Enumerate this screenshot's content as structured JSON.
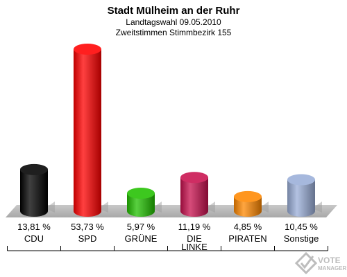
{
  "chart_data": {
    "type": "bar",
    "title": "Stadt Mülheim an der Ruhr",
    "subtitle": "Landtagswahl 09.05.2010",
    "subtitle2": "Zweitstimmen Stimmbezirk 155",
    "categories": [
      "CDU",
      "SPD",
      "GRÜNE",
      "DIE LINKE",
      "PIRATEN",
      "Sonstige"
    ],
    "category_lines": [
      [
        "CDU"
      ],
      [
        "SPD"
      ],
      [
        "GRÜNE"
      ],
      [
        "DIE",
        "LINKE"
      ],
      [
        "PIRATEN"
      ],
      [
        "Sonstige"
      ]
    ],
    "values": [
      13.81,
      53.73,
      5.97,
      11.19,
      4.85,
      10.45
    ],
    "value_labels": [
      "13,81 %",
      "53,73 %",
      "5,97 %",
      "11,19 %",
      "4,85 %",
      "10,45 %"
    ],
    "colors": [
      "#000000",
      "#ff0000",
      "#22c000",
      "#c8104e",
      "#ff8800",
      "#9aaed8"
    ],
    "ylim": [
      0,
      53.73
    ],
    "grid": false,
    "legend": "none"
  },
  "logo": {
    "line1": "VOTE",
    "line2": "MANAGER"
  }
}
